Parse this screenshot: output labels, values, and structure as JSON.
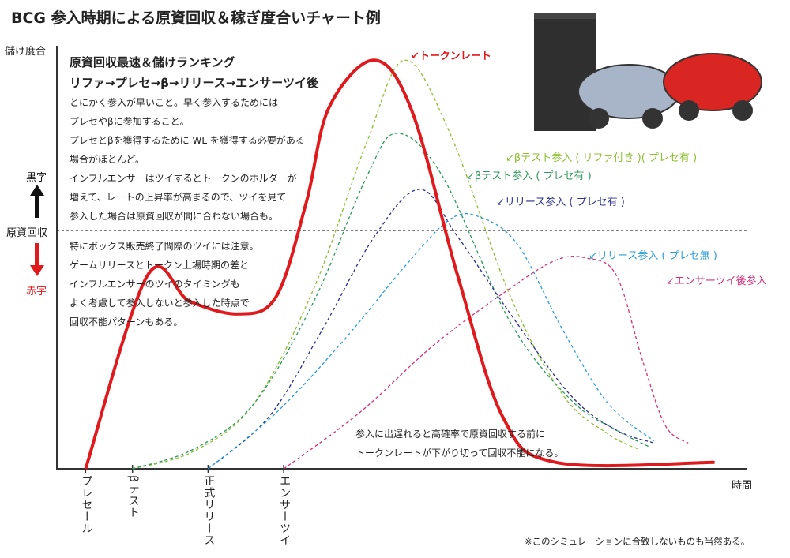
{
  "title": "BCG 参入時期による原資回収＆稼ぎ度合いチャート例",
  "y_axis_label": "儲け度合",
  "x_axis_label": "時間",
  "side_labels": {
    "profit": "黒字",
    "breakeven": "原資回収",
    "loss": "赤字"
  },
  "panel": {
    "heading_line1": "原資回収最速＆儲けランキング",
    "heading_line2": "リファ→プレセ→β→リリース→エンサーツイ後",
    "para1": [
      "とにかく参入が早いこと。早く参入するためには",
      "プレセやβに参加すること。",
      "プレセとβを獲得するために WL を獲得する必要がある",
      "場合がほとんど。",
      "インフルエンサーはツイするとトークンのホルダーが",
      "増えて、レートの上昇率が高まるので、ツイを見て",
      "参入した場合は原資回収が間に合わない場合も。"
    ],
    "para2": [
      "特にボックス販売終了間際のツイには注意。",
      "ゲームリリースとトークン上場時期の差と",
      "インフルエンサーのツイのタイミングも",
      "よく考慮して参入しないと参入した時点で",
      "回収不能パターンもある。"
    ]
  },
  "note": [
    "参入に出遅れると高確率で原資回収する前に",
    "トークンレートが下がり切って回収不能になる。"
  ],
  "footnote": "※このシミュレーションに合致しないものも当然ある。",
  "illustration": "car-escaping-wall-illustration",
  "colors": {
    "token_rate": "#e0191c",
    "presale_refer": "#8dbf2e",
    "beta_presale": "#2a9a5a",
    "release_presale": "#2a2f8c",
    "release_nopresale": "#2b9fd6",
    "influencer": "#d6307d",
    "axis": "#333333"
  },
  "chart_data": {
    "type": "line",
    "x_ticks": [
      "プレセール",
      "βテスト",
      "正式リリース",
      "エンサーツイ"
    ],
    "xlabel": "時間",
    "ylabel": "儲け度合",
    "reference_line": "原資回収",
    "series": [
      {
        "name": "トークンレート",
        "label": "↙トークンレート",
        "style": "solid-thick",
        "color": "#e0191c",
        "points": [
          [
            0.38,
            0
          ],
          [
            1.2,
            4.5
          ],
          [
            1.75,
            3.9
          ],
          [
            2.4,
            3.6
          ],
          [
            2.9,
            4.0
          ],
          [
            3.3,
            6.2
          ],
          [
            3.6,
            8.4
          ],
          [
            4.2,
            9.5
          ],
          [
            4.7,
            8.3
          ],
          [
            5.3,
            4.5
          ],
          [
            5.9,
            1.2
          ],
          [
            6.6,
            0.15
          ],
          [
            8.7,
            0.15
          ]
        ]
      },
      {
        "name": "βテスト参入（リファア付き）(プレセ有）",
        "label": "↙βテスト参入 ( リファ付き )( プレセ有 )",
        "style": "dashed",
        "color": "#8dbf2e",
        "points": [
          [
            1.0,
            0
          ],
          [
            1.8,
            0.4
          ],
          [
            2.6,
            1.5
          ],
          [
            3.4,
            4.2
          ],
          [
            4.1,
            7.6
          ],
          [
            4.6,
            9.5
          ],
          [
            5.2,
            7.8
          ],
          [
            6.0,
            4.0
          ],
          [
            6.7,
            1.7
          ],
          [
            7.3,
            0.8
          ],
          [
            7.7,
            0.45
          ]
        ]
      },
      {
        "name": "βテスト参入（プレセ有）",
        "label": "↙βテスト参入 ( プレセ有 )",
        "style": "dashed",
        "color": "#2a9a5a",
        "points": [
          [
            1.0,
            0
          ],
          [
            1.8,
            0.45
          ],
          [
            2.6,
            1.5
          ],
          [
            3.4,
            3.9
          ],
          [
            4.1,
            6.8
          ],
          [
            4.5,
            7.8
          ],
          [
            5.1,
            6.8
          ],
          [
            6.0,
            3.4
          ],
          [
            6.8,
            1.6
          ],
          [
            7.4,
            0.9
          ],
          [
            7.85,
            0.5
          ]
        ]
      },
      {
        "name": "リリース参入（プレセ有）",
        "label": "↙リリース参入 ( プレセ有 )",
        "style": "dashed",
        "color": "#2a2f8c",
        "points": [
          [
            2.0,
            0
          ],
          [
            2.8,
            1.2
          ],
          [
            3.5,
            3.2
          ],
          [
            4.2,
            5.4
          ],
          [
            4.8,
            6.5
          ],
          [
            5.3,
            5.4
          ],
          [
            6.0,
            3.6
          ],
          [
            6.8,
            1.7
          ],
          [
            7.4,
            0.9
          ],
          [
            7.9,
            0.6
          ]
        ]
      },
      {
        "name": "リリース参入（プレセ無）",
        "label": "↙リリース参入 ( プレセ無 )",
        "style": "dashed",
        "color": "#2b9fd6",
        "points": [
          [
            2.0,
            0
          ],
          [
            2.9,
            1.3
          ],
          [
            3.8,
            3.0
          ],
          [
            4.6,
            4.7
          ],
          [
            5.2,
            5.8
          ],
          [
            5.6,
            5.85
          ],
          [
            6.1,
            5.2
          ],
          [
            6.7,
            3.2
          ],
          [
            7.3,
            1.5
          ],
          [
            7.9,
            0.65
          ]
        ]
      },
      {
        "name": "エンサーツイ後参入",
        "label": "↙エンサーツイ後参入",
        "style": "dashed",
        "color": "#d6307d",
        "points": [
          [
            3.0,
            0
          ],
          [
            4.0,
            1.3
          ],
          [
            5.0,
            2.9
          ],
          [
            6.0,
            4.2
          ],
          [
            6.6,
            4.85
          ],
          [
            7.0,
            4.9
          ],
          [
            7.4,
            4.5
          ],
          [
            7.75,
            2.5
          ],
          [
            8.05,
            1.0
          ],
          [
            8.35,
            0.6
          ]
        ]
      }
    ]
  }
}
